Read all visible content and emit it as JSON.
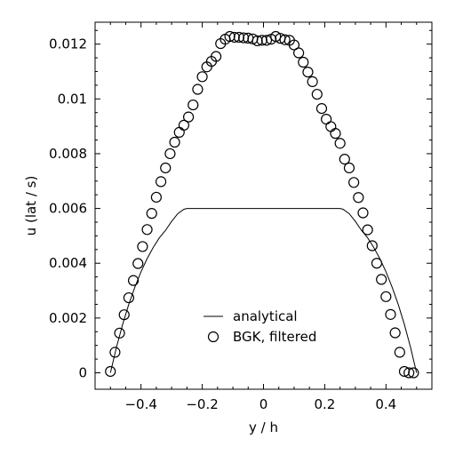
{
  "chart_data": {
    "type": "line",
    "xlabel": "y / h",
    "ylabel": "u (lat / s)",
    "xlim": [
      -0.55,
      0.55
    ],
    "ylim": [
      -0.0006,
      0.0128
    ],
    "x_ticks": [
      -0.4,
      -0.2,
      0,
      0.2,
      0.4
    ],
    "x_tick_labels": [
      "−0.4",
      "−0.2",
      "0",
      "0.2",
      "0.4"
    ],
    "y_ticks": [
      0,
      0.002,
      0.004,
      0.006,
      0.008,
      0.01,
      0.012
    ],
    "y_tick_labels": [
      "0",
      "0.002",
      "0.004",
      "0.006",
      "0.008",
      "0.01",
      "0.012"
    ],
    "legend_position": "lower-center",
    "series": [
      {
        "name": "analytical",
        "style": "line",
        "color": "#000000",
        "x": [
          -0.5,
          -0.48,
          -0.46,
          -0.44,
          -0.42,
          -0.4,
          -0.38,
          -0.36,
          -0.34,
          -0.32,
          -0.3,
          -0.28,
          -0.26,
          -0.25,
          0.25,
          0.26,
          0.28,
          0.3,
          0.32,
          0.34,
          0.36,
          0.38,
          0.4,
          0.42,
          0.44,
          0.46,
          0.48,
          0.5
        ],
        "y": [
          0,
          0.00094,
          0.00177,
          0.0025,
          0.00313,
          0.00369,
          0.00417,
          0.00458,
          0.00493,
          0.0052,
          0.00553,
          0.00581,
          0.00597,
          0.006,
          0.006,
          0.00597,
          0.00581,
          0.00553,
          0.0052,
          0.00493,
          0.00458,
          0.00417,
          0.00369,
          0.00313,
          0.0025,
          0.00177,
          0.00094,
          0
        ]
      },
      {
        "name": "BGK, filtered",
        "style": "marker",
        "marker": "open-circle",
        "color": "#000000",
        "x": [
          -0.5,
          -0.485,
          -0.47,
          -0.455,
          -0.44,
          -0.425,
          -0.41,
          -0.395,
          -0.38,
          -0.365,
          -0.35,
          -0.335,
          -0.32,
          -0.305,
          -0.29,
          -0.275,
          -0.26,
          -0.245,
          -0.23,
          -0.215,
          -0.2,
          -0.185,
          -0.17,
          -0.155,
          -0.14,
          -0.125,
          -0.11,
          -0.095,
          -0.08,
          -0.065,
          -0.05,
          -0.035,
          -0.02,
          -0.005,
          0.01,
          0.025,
          0.04,
          0.055,
          0.07,
          0.085,
          0.1,
          0.115,
          0.13,
          0.145,
          0.16,
          0.175,
          0.19,
          0.205,
          0.22,
          0.235,
          0.25,
          0.265,
          0.28,
          0.295,
          0.31,
          0.325,
          0.34,
          0.355,
          0.37,
          0.385,
          0.4,
          0.415,
          0.43,
          0.445,
          0.46,
          0.475,
          0.49
        ],
        "y": [
          5e-05,
          0.00075,
          0.00145,
          0.00212,
          0.00274,
          0.00337,
          0.00399,
          0.00461,
          0.00523,
          0.00582,
          0.00641,
          0.00698,
          0.00748,
          0.008,
          0.00842,
          0.00878,
          0.00904,
          0.00934,
          0.00978,
          0.01035,
          0.01081,
          0.01117,
          0.01137,
          0.01155,
          0.01202,
          0.01218,
          0.01228,
          0.01225,
          0.01225,
          0.01223,
          0.01222,
          0.01219,
          0.01212,
          0.01214,
          0.01214,
          0.01218,
          0.01228,
          0.01221,
          0.01216,
          0.01214,
          0.01197,
          0.01168,
          0.01134,
          0.01098,
          0.01063,
          0.01017,
          0.00965,
          0.00926,
          0.00899,
          0.00874,
          0.00838,
          0.0078,
          0.00748,
          0.00695,
          0.0064,
          0.00584,
          0.00522,
          0.00464,
          0.004,
          0.00341,
          0.00278,
          0.00213,
          0.00146,
          0.00075,
          5e-05,
          0.0,
          0.0
        ]
      }
    ]
  }
}
